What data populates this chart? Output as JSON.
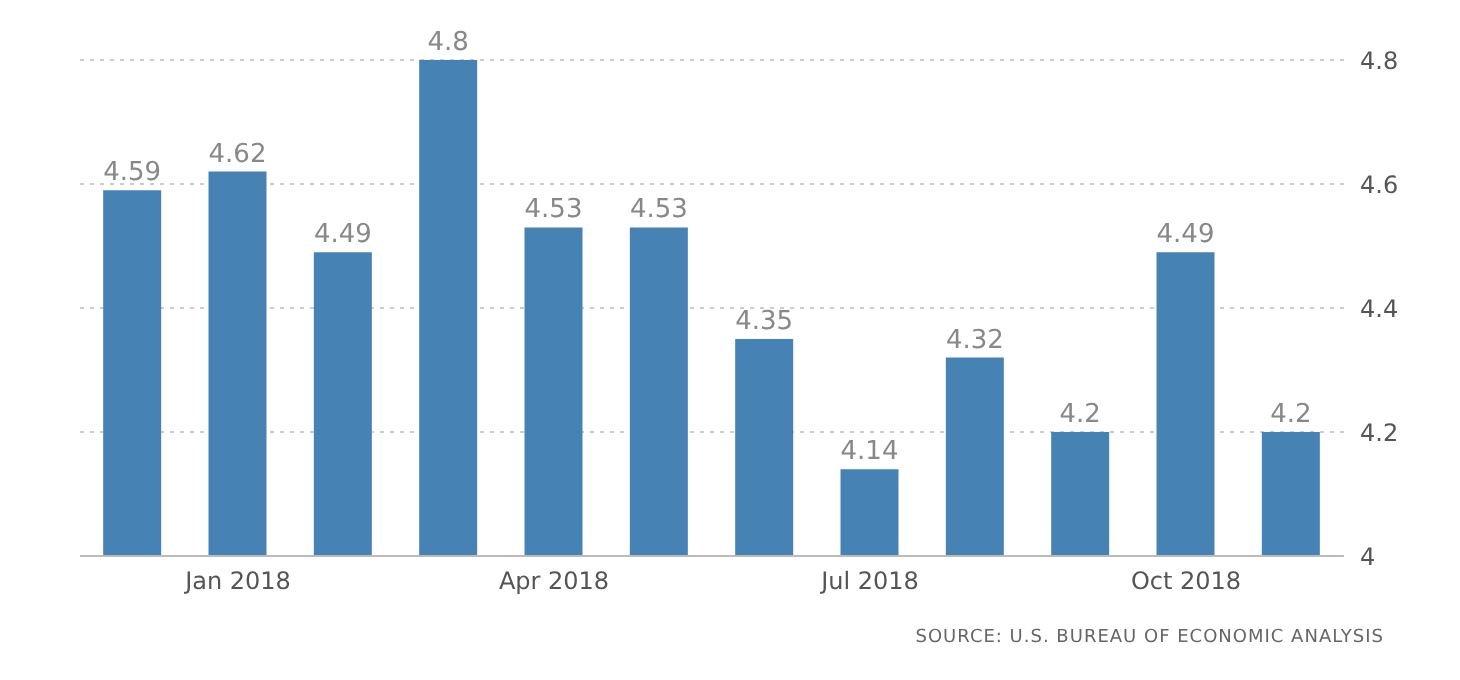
{
  "chart_data": {
    "type": "bar",
    "categories": [
      null,
      "Jan 2018",
      null,
      null,
      "Apr 2018",
      null,
      null,
      "Jul 2018",
      null,
      null,
      "Oct 2018",
      null
    ],
    "values": [
      4.59,
      4.62,
      4.49,
      4.8,
      4.53,
      4.53,
      4.35,
      4.14,
      4.32,
      4.2,
      4.49,
      4.2
    ],
    "color": "#4682b4",
    "ylim": [
      4,
      4.8
    ],
    "yticks": [
      4,
      4.2,
      4.4,
      4.6,
      4.8
    ],
    "grid": "y",
    "data_labels": true,
    "annotations": [
      "SOURCE: U.S. BUREAU OF ECONOMIC ANALYSIS"
    ]
  }
}
